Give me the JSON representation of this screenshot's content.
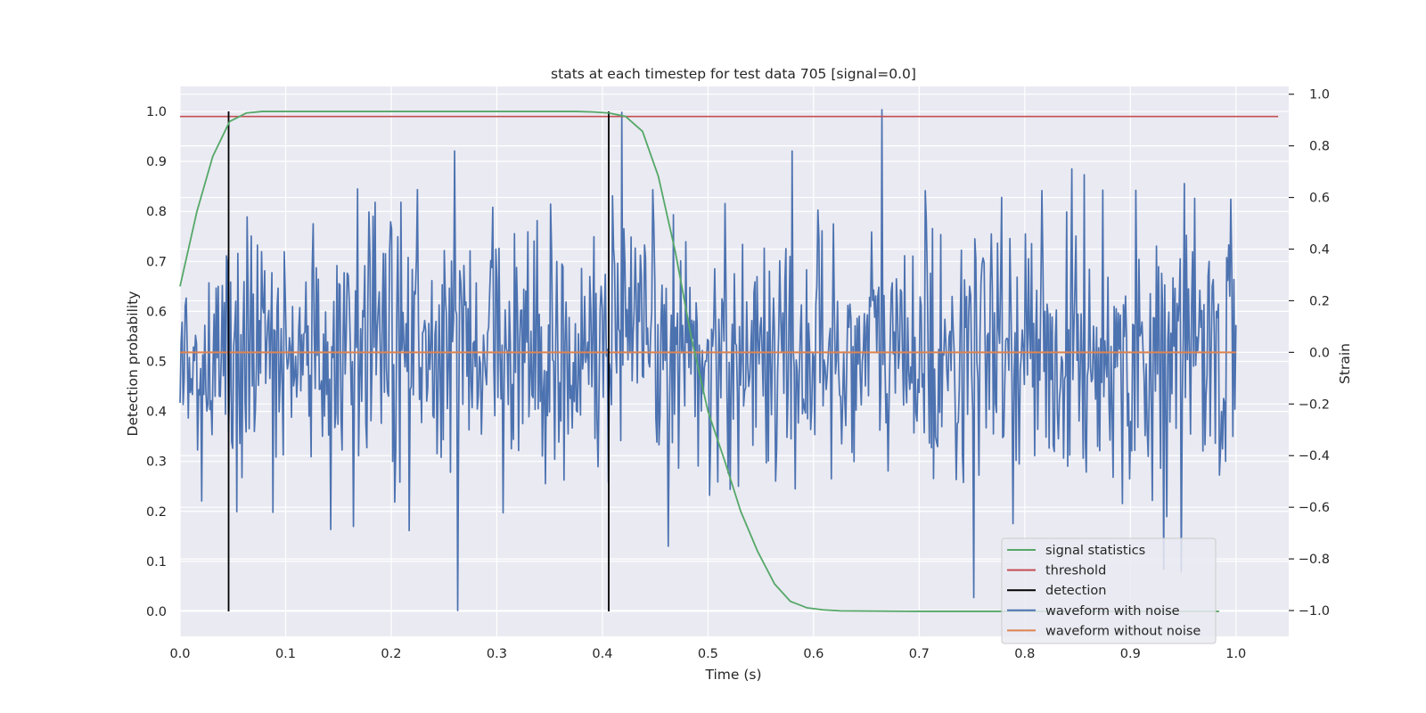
{
  "chart_data": {
    "type": "line",
    "title": "stats at each timestep for test data 705 [signal=0.0]",
    "xlabel": "Time (s)",
    "ylabel": "Detection probability",
    "y2label": "Strain",
    "xlim": [
      0.0,
      1.05
    ],
    "ylim": [
      -0.05,
      1.05
    ],
    "y2lim": [
      -1.1,
      1.03
    ],
    "x_ticks": [
      "0.0",
      "0.1",
      "0.2",
      "0.3",
      "0.4",
      "0.5",
      "0.6",
      "0.7",
      "0.8",
      "0.9",
      "1.0"
    ],
    "y_ticks": [
      "0.0",
      "0.1",
      "0.2",
      "0.3",
      "0.4",
      "0.5",
      "0.6",
      "0.7",
      "0.8",
      "0.9",
      "1.0"
    ],
    "y2_ticks": [
      "−1.0",
      "−0.8",
      "−0.6",
      "−0.4",
      "−0.2",
      "0.0",
      "0.2",
      "0.4",
      "0.6",
      "0.8",
      "1.0"
    ],
    "grid": true,
    "legend_position": "lower-right",
    "legend": [
      "signal statistics",
      "threshold",
      "detection",
      "waveform with noise",
      "waveform without noise"
    ],
    "colors": {
      "signal_statistics": "#55a868",
      "threshold": "#c44e52",
      "detection": "#000000",
      "waveform_with_noise": "#4c72b0",
      "waveform_without_noise": "#dd8452",
      "plot_background": "#eaeaf2",
      "grid": "#ffffff"
    },
    "series": [
      {
        "name": "signal statistics",
        "axis": "left",
        "x": [
          0.0,
          0.016,
          0.031,
          0.047,
          0.063,
          0.078,
          0.094,
          0.109,
          0.125,
          0.2,
          0.3,
          0.375,
          0.391,
          0.406,
          0.422,
          0.438,
          0.453,
          0.469,
          0.484,
          0.5,
          0.516,
          0.531,
          0.547,
          0.563,
          0.578,
          0.594,
          0.609,
          0.625,
          0.7,
          0.8,
          0.9,
          0.984
        ],
        "y": [
          0.65,
          0.8,
          0.91,
          0.98,
          0.997,
          1.0,
          1.0,
          1.0,
          1.0,
          1.0,
          1.0,
          1.0,
          0.999,
          0.997,
          0.99,
          0.96,
          0.87,
          0.72,
          0.55,
          0.4,
          0.3,
          0.2,
          0.12,
          0.055,
          0.02,
          0.007,
          0.003,
          0.001,
          0.0,
          0.0,
          0.0,
          0.0
        ]
      },
      {
        "name": "threshold",
        "axis": "left",
        "x": [
          0.0,
          1.04
        ],
        "y": [
          0.99,
          0.99
        ]
      },
      {
        "name": "detection",
        "axis": "left",
        "x": [
          0.046,
          0.406
        ],
        "y": [
          0.0,
          1.0
        ]
      },
      {
        "name": "waveform with noise",
        "axis": "right",
        "x_range": [
          0.0,
          1.0
        ],
        "n_samples": 1024,
        "std": 0.25,
        "peaks": [
          {
            "x": 0.263,
            "y": -1.0
          },
          {
            "x": 0.418,
            "y": 0.93
          },
          {
            "x": 0.665,
            "y": 0.94
          },
          {
            "x": 0.752,
            "y": -0.95
          },
          {
            "x": 0.932,
            "y": -0.84
          },
          {
            "x": 0.948,
            "y": -0.85
          }
        ]
      },
      {
        "name": "waveform without noise",
        "axis": "right",
        "x": [
          0.0,
          1.0
        ],
        "y": [
          0.0,
          0.0
        ]
      }
    ]
  }
}
